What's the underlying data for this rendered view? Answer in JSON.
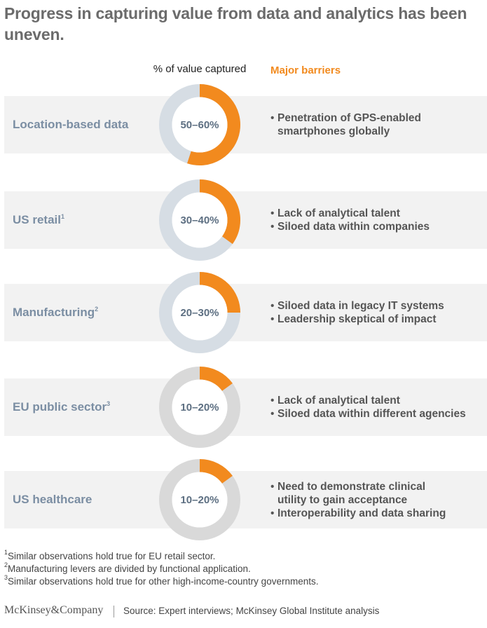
{
  "chart_data": {
    "type": "donut",
    "title": "Progress in capturing value from data and analytics has been uneven.",
    "value_header": "% of value captured",
    "barrier_header": "Major barriers",
    "value_color": "#f28a1e",
    "rows": [
      {
        "label": "Location-based data",
        "value": 55,
        "value_label": "50–60%",
        "track_color": "#d6dde4",
        "barriers": [
          [
            "Penetration of GPS-enabled",
            "smartphones globally"
          ]
        ]
      },
      {
        "label": "US retail",
        "note": "1",
        "value": 35,
        "value_label": "30–40%",
        "track_color": "#d6dde4",
        "barriers": [
          [
            "Lack of analytical talent"
          ],
          [
            "Siloed data within companies"
          ]
        ]
      },
      {
        "label": "Manufacturing",
        "note": "2",
        "value": 25,
        "value_label": "20–30%",
        "track_color": "#d6dde4",
        "barriers": [
          [
            "Siloed data in legacy IT systems"
          ],
          [
            "Leadership skeptical of impact"
          ]
        ]
      },
      {
        "label": "EU public sector",
        "note": "3",
        "value": 15,
        "value_label": "10–20%",
        "track_color": "#d9d9d9",
        "barriers": [
          [
            "Lack of analytical talent"
          ],
          [
            "Siloed data within different agencies"
          ]
        ]
      },
      {
        "label": "US healthcare",
        "value": 15,
        "value_label": "10–20%",
        "track_color": "#d9d9d9",
        "barriers": [
          [
            "Need to demonstrate clinical",
            "utility to gain acceptance"
          ],
          [
            "Interoperability and data sharing"
          ]
        ]
      }
    ],
    "footnotes": [
      {
        "mark": "1",
        "text": "Similar observations hold true for EU retail sector."
      },
      {
        "mark": "2",
        "text": "Manufacturing levers are divided by functional application."
      },
      {
        "mark": "3",
        "text": "Similar observations hold true for other high-income-country governments."
      }
    ],
    "brand": "McKinsey&Company",
    "source": "Source: Expert interviews; McKinsey Global Institute analysis"
  }
}
